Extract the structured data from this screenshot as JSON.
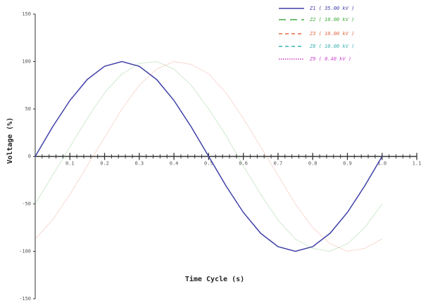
{
  "chart_data": {
    "type": "line",
    "ylabel": "Voltage (%)",
    "xlabel": "Time Cycle (s)",
    "x": [
      0,
      0.05,
      0.1,
      0.15,
      0.2,
      0.25,
      0.3,
      0.35,
      0.4,
      0.45,
      0.5,
      0.55,
      0.6,
      0.65,
      0.7,
      0.75,
      0.8,
      0.85,
      0.9,
      0.95,
      1.0
    ],
    "series": [
      {
        "name": "Z1 ( 35.00 kV )",
        "color": "#4040a8",
        "style": "solid",
        "values": [
          0,
          31,
          59,
          81,
          95,
          100,
          95,
          81,
          59,
          31,
          0,
          -31,
          -59,
          -81,
          -95,
          -100,
          -95,
          -81,
          -59,
          -31,
          0
        ]
      },
      {
        "name": "Z2 ( 10.00 kV )",
        "color": "#44aa44",
        "style": "longdash",
        "values": [
          -50,
          -20,
          10,
          40,
          67,
          87,
          98,
          100,
          92,
          75,
          50,
          22,
          -10,
          -40,
          -67,
          -87,
          -97,
          -100,
          -92,
          -75,
          -50
        ]
      },
      {
        "name": "Z3 ( 10.00 kV )",
        "color": "#e06a4a",
        "style": "dashed",
        "values": [
          -87,
          -67,
          -40,
          -10,
          20,
          50,
          75,
          92,
          100,
          97,
          87,
          67,
          40,
          10,
          -20,
          -50,
          -75,
          -92,
          -100,
          -97,
          -87
        ]
      },
      {
        "name": "Z8 ( 10.00 kV )",
        "color": "#40b0b0",
        "style": "dashed",
        "values": [
          null,
          null,
          null,
          null,
          null,
          null,
          null,
          null,
          null,
          null,
          null,
          null,
          null,
          null,
          null,
          null,
          null,
          null,
          null,
          null,
          null
        ]
      },
      {
        "name": "Z9 ( 0.40 kV )",
        "color": "#cc44cc",
        "style": "dotted",
        "values": [
          null,
          null,
          null,
          null,
          null,
          null,
          null,
          null,
          null,
          null,
          null,
          null,
          null,
          null,
          null,
          null,
          null,
          null,
          null,
          null,
          null
        ]
      }
    ],
    "xlim": [
      0,
      1.1
    ],
    "xticks": [
      0.1,
      0.2,
      0.3,
      0.4,
      0.5,
      0.6,
      0.7,
      0.8,
      0.9,
      {
        "value": 1,
        "label": "1.0"
      },
      1.1
    ],
    "ylim": [
      -150,
      150
    ],
    "yticks": [
      150,
      100,
      50,
      0,
      -50,
      -100,
      -150
    ]
  }
}
